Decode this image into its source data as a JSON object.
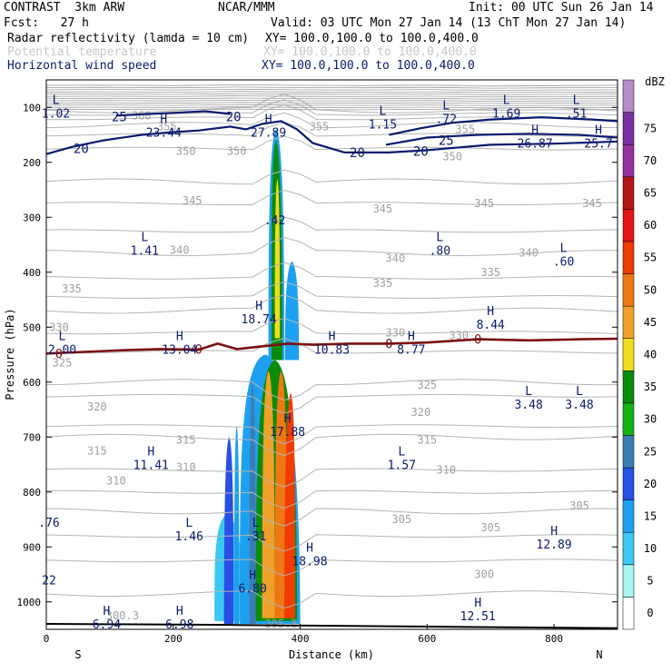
{
  "header": {
    "model": "CONTRAST  3km ARW",
    "center": "NCAR/MMM",
    "init": "Init: 00 UTC Sun 26 Jan 14",
    "fcst": "Fcst:   27 h",
    "valid": "Valid: 03 UTC Mon 27 Jan 14 (13 ChT Mon 27 Jan 14)",
    "fields": [
      {
        "name": "Radar reflectivity (lamda = 10 cm)",
        "xy": "XY= 100.0,100.0 to 100.0,400.0",
        "color": "#000000"
      },
      {
        "name": "Potential temperature",
        "xy": "XY= 100.0,100.0 to 100.0,400.0",
        "color": "#c8c8c8"
      },
      {
        "name": "Horizontal wind speed",
        "xy": "XY= 100.0,100.0 to 100.0,400.0",
        "color": "#0a1a6e"
      }
    ]
  },
  "chart_data": {
    "type": "heatmap",
    "xlabel": "Distance (km)",
    "ylabel": "Pressure (hPa)",
    "xlim": [
      0,
      900
    ],
    "ylim": [
      1050,
      50
    ],
    "xticks": [
      "0",
      "200",
      "400",
      "600",
      "800"
    ],
    "yticks": [
      "100",
      "200",
      "300",
      "400",
      "500",
      "600",
      "700",
      "800",
      "900",
      "1000"
    ],
    "x_end_labels": {
      "left": "S",
      "right": "N"
    },
    "colorbar": {
      "unit": "dBZ",
      "levels": [
        "0",
        "5",
        "10",
        "15",
        "20",
        "25",
        "30",
        "35",
        "40",
        "45",
        "50",
        "55",
        "60",
        "65",
        "70",
        "75"
      ],
      "colors": [
        "#ffffff",
        "#a8f4f4",
        "#3cc8f0",
        "#1ea0f0",
        "#2850e6",
        "#3c7cb4",
        "#14b414",
        "#0a8c0a",
        "#f0dc1e",
        "#f0a028",
        "#f07814",
        "#f03c00",
        "#e61414",
        "#b41414",
        "#9632a0",
        "#7832a0",
        "#b48cc8"
      ]
    },
    "theta_labels": [
      {
        "t": "360",
        "x": 150,
        "p": 115
      },
      {
        "t": "355",
        "x": 190,
        "p": 135
      },
      {
        "t": "355",
        "x": 430,
        "p": 135
      },
      {
        "t": "355",
        "x": 660,
        "p": 140
      },
      {
        "t": "350",
        "x": 220,
        "p": 180
      },
      {
        "t": "350",
        "x": 300,
        "p": 180
      },
      {
        "t": "350",
        "x": 640,
        "p": 190
      },
      {
        "t": "345",
        "x": 230,
        "p": 270
      },
      {
        "t": "345",
        "x": 530,
        "p": 285
      },
      {
        "t": "345",
        "x": 690,
        "p": 275
      },
      {
        "t": "345",
        "x": 860,
        "p": 275
      },
      {
        "t": "340",
        "x": 210,
        "p": 360
      },
      {
        "t": "340",
        "x": 550,
        "p": 375
      },
      {
        "t": "340",
        "x": 760,
        "p": 365
      },
      {
        "t": "335",
        "x": 40,
        "p": 430
      },
      {
        "t": "335",
        "x": 530,
        "p": 420
      },
      {
        "t": "335",
        "x": 700,
        "p": 400
      },
      {
        "t": "330",
        "x": 20,
        "p": 500
      },
      {
        "t": "330",
        "x": 550,
        "p": 510
      },
      {
        "t": "330",
        "x": 650,
        "p": 515
      },
      {
        "t": "325",
        "x": 25,
        "p": 565
      },
      {
        "t": "325",
        "x": 600,
        "p": 605
      },
      {
        "t": "320",
        "x": 80,
        "p": 645
      },
      {
        "t": "320",
        "x": 590,
        "p": 655
      },
      {
        "t": "315",
        "x": 80,
        "p": 725
      },
      {
        "t": "315",
        "x": 220,
        "p": 705
      },
      {
        "t": "315",
        "x": 600,
        "p": 705
      },
      {
        "t": "310",
        "x": 110,
        "p": 780
      },
      {
        "t": "310",
        "x": 220,
        "p": 755
      },
      {
        "t": "310",
        "x": 630,
        "p": 760
      },
      {
        "t": "305",
        "x": 560,
        "p": 850
      },
      {
        "t": "305",
        "x": 700,
        "p": 865
      },
      {
        "t": "305",
        "x": 840,
        "p": 825
      },
      {
        "t": "300",
        "x": 690,
        "p": 950
      },
      {
        "t": "300.3",
        "x": 120,
        "p": 1025
      },
      {
        "t": "295.8",
        "x": 370,
        "p": 1040
      }
    ],
    "wind_labels": [
      {
        "t": "25",
        "x": 115,
        "p": 117
      },
      {
        "t": "20",
        "x": 295,
        "p": 117
      },
      {
        "t": "20",
        "x": 55,
        "p": 175
      },
      {
        "t": "20",
        "x": 490,
        "p": 182
      },
      {
        "t": "20",
        "x": 590,
        "p": 180
      },
      {
        "t": "25",
        "x": 630,
        "p": 160
      },
      {
        "t": "0",
        "x": 20,
        "p": 548
      },
      {
        "t": "0",
        "x": 240,
        "p": 540
      },
      {
        "t": "0",
        "x": 540,
        "p": 530
      },
      {
        "t": "0",
        "x": 680,
        "p": 522
      }
    ],
    "extrema": [
      {
        "k": "L",
        "v": "1.02",
        "x": 15,
        "p": 100
      },
      {
        "k": "H",
        "v": "23.44",
        "x": 185,
        "p": 135
      },
      {
        "k": "H",
        "v": "27.89",
        "x": 350,
        "p": 135
      },
      {
        "k": "L",
        "v": "1.15",
        "x": 530,
        "p": 120
      },
      {
        "k": "L",
        "v": ".72",
        "x": 630,
        "p": 110
      },
      {
        "k": "L",
        "v": "1.69",
        "x": 725,
        "p": 100
      },
      {
        "k": "L",
        "v": ".51",
        "x": 835,
        "p": 100
      },
      {
        "k": "H",
        "v": "26.87",
        "x": 770,
        "p": 155
      },
      {
        "k": "H",
        "v": "25.7",
        "x": 870,
        "p": 155
      },
      {
        "k": "",
        "v": ".42",
        "x": 360,
        "p": 295
      },
      {
        "k": "L",
        "v": "1.41",
        "x": 155,
        "p": 350
      },
      {
        "k": "L",
        "v": ".80",
        "x": 620,
        "p": 350
      },
      {
        "k": "L",
        "v": ".60",
        "x": 815,
        "p": 370
      },
      {
        "k": "H",
        "v": "18.74",
        "x": 335,
        "p": 475
      },
      {
        "k": "H",
        "v": "8.44",
        "x": 700,
        "p": 485
      },
      {
        "k": "L",
        "v": "2.00",
        "x": 25,
        "p": 530
      },
      {
        "k": "H",
        "v": "13.04",
        "x": 210,
        "p": 530
      },
      {
        "k": "H",
        "v": "10.83",
        "x": 450,
        "p": 530
      },
      {
        "k": "H",
        "v": "8.77",
        "x": 575,
        "p": 530
      },
      {
        "k": "L",
        "v": "3.48",
        "x": 760,
        "p": 630
      },
      {
        "k": "L",
        "v": "3.48",
        "x": 840,
        "p": 630
      },
      {
        "k": "H",
        "v": "17.88",
        "x": 380,
        "p": 680
      },
      {
        "k": "H",
        "v": "11.41",
        "x": 165,
        "p": 740
      },
      {
        "k": "L",
        "v": "1.57",
        "x": 560,
        "p": 740
      },
      {
        "k": "",
        "v": ".76",
        "x": 0,
        "p": 845
      },
      {
        "k": "L",
        "v": "1.46",
        "x": 225,
        "p": 870
      },
      {
        "k": "L",
        "v": ".31",
        "x": 330,
        "p": 870
      },
      {
        "k": "H",
        "v": "18.98",
        "x": 415,
        "p": 915
      },
      {
        "k": "H",
        "v": "12.89",
        "x": 800,
        "p": 885
      },
      {
        "k": "",
        "v": "22",
        "x": 0,
        "p": 950
      },
      {
        "k": "H",
        "v": "6.80",
        "x": 325,
        "p": 965
      },
      {
        "k": "H",
        "v": "12.51",
        "x": 680,
        "p": 1015
      },
      {
        "k": "H",
        "v": "6.94",
        "x": 95,
        "p": 1030
      },
      {
        "k": "H",
        "v": "6.98",
        "x": 210,
        "p": 1030
      }
    ],
    "reflectivity": [
      {
        "dbz": 5,
        "x": [
          265,
          312
        ],
        "p": [
          1035,
          840
        ],
        "cx": 285
      },
      {
        "dbz": 15,
        "x": [
          280,
          295
        ],
        "p": [
          1040,
          700
        ],
        "cx": 288
      },
      {
        "dbz": 10,
        "x": [
          296,
          304
        ],
        "p": [
          1040,
          680
        ],
        "cx": 300
      },
      {
        "dbz": 10,
        "x": [
          305,
          400
        ],
        "p": [
          1040,
          550
        ],
        "cx": 345
      },
      {
        "dbz": 20,
        "x": [
          320,
          330
        ],
        "p": [
          1040,
          600
        ],
        "cx": 325
      },
      {
        "dbz": 30,
        "x": [
          330,
          395
        ],
        "p": [
          1035,
          560
        ],
        "cx": 360
      },
      {
        "dbz": 40,
        "x": [
          340,
          360
        ],
        "p": [
          1030,
          580
        ],
        "cx": 350
      },
      {
        "dbz": 45,
        "x": [
          360,
          380
        ],
        "p": [
          1030,
          580
        ],
        "cx": 370
      },
      {
        "dbz": 50,
        "x": [
          375,
          392
        ],
        "p": [
          1030,
          620
        ],
        "cx": 385
      },
      {
        "dbz": 10,
        "x": [
          350,
          375
        ],
        "p": [
          560,
          140
        ],
        "cx": 362
      },
      {
        "dbz": 30,
        "x": [
          355,
          372
        ],
        "p": [
          560,
          160
        ],
        "cx": 362
      },
      {
        "dbz": 35,
        "x": [
          360,
          368
        ],
        "p": [
          520,
          230
        ],
        "cx": 364
      },
      {
        "dbz": 10,
        "x": [
          376,
          398
        ],
        "p": [
          560,
          380
        ],
        "cx": 387
      }
    ]
  }
}
